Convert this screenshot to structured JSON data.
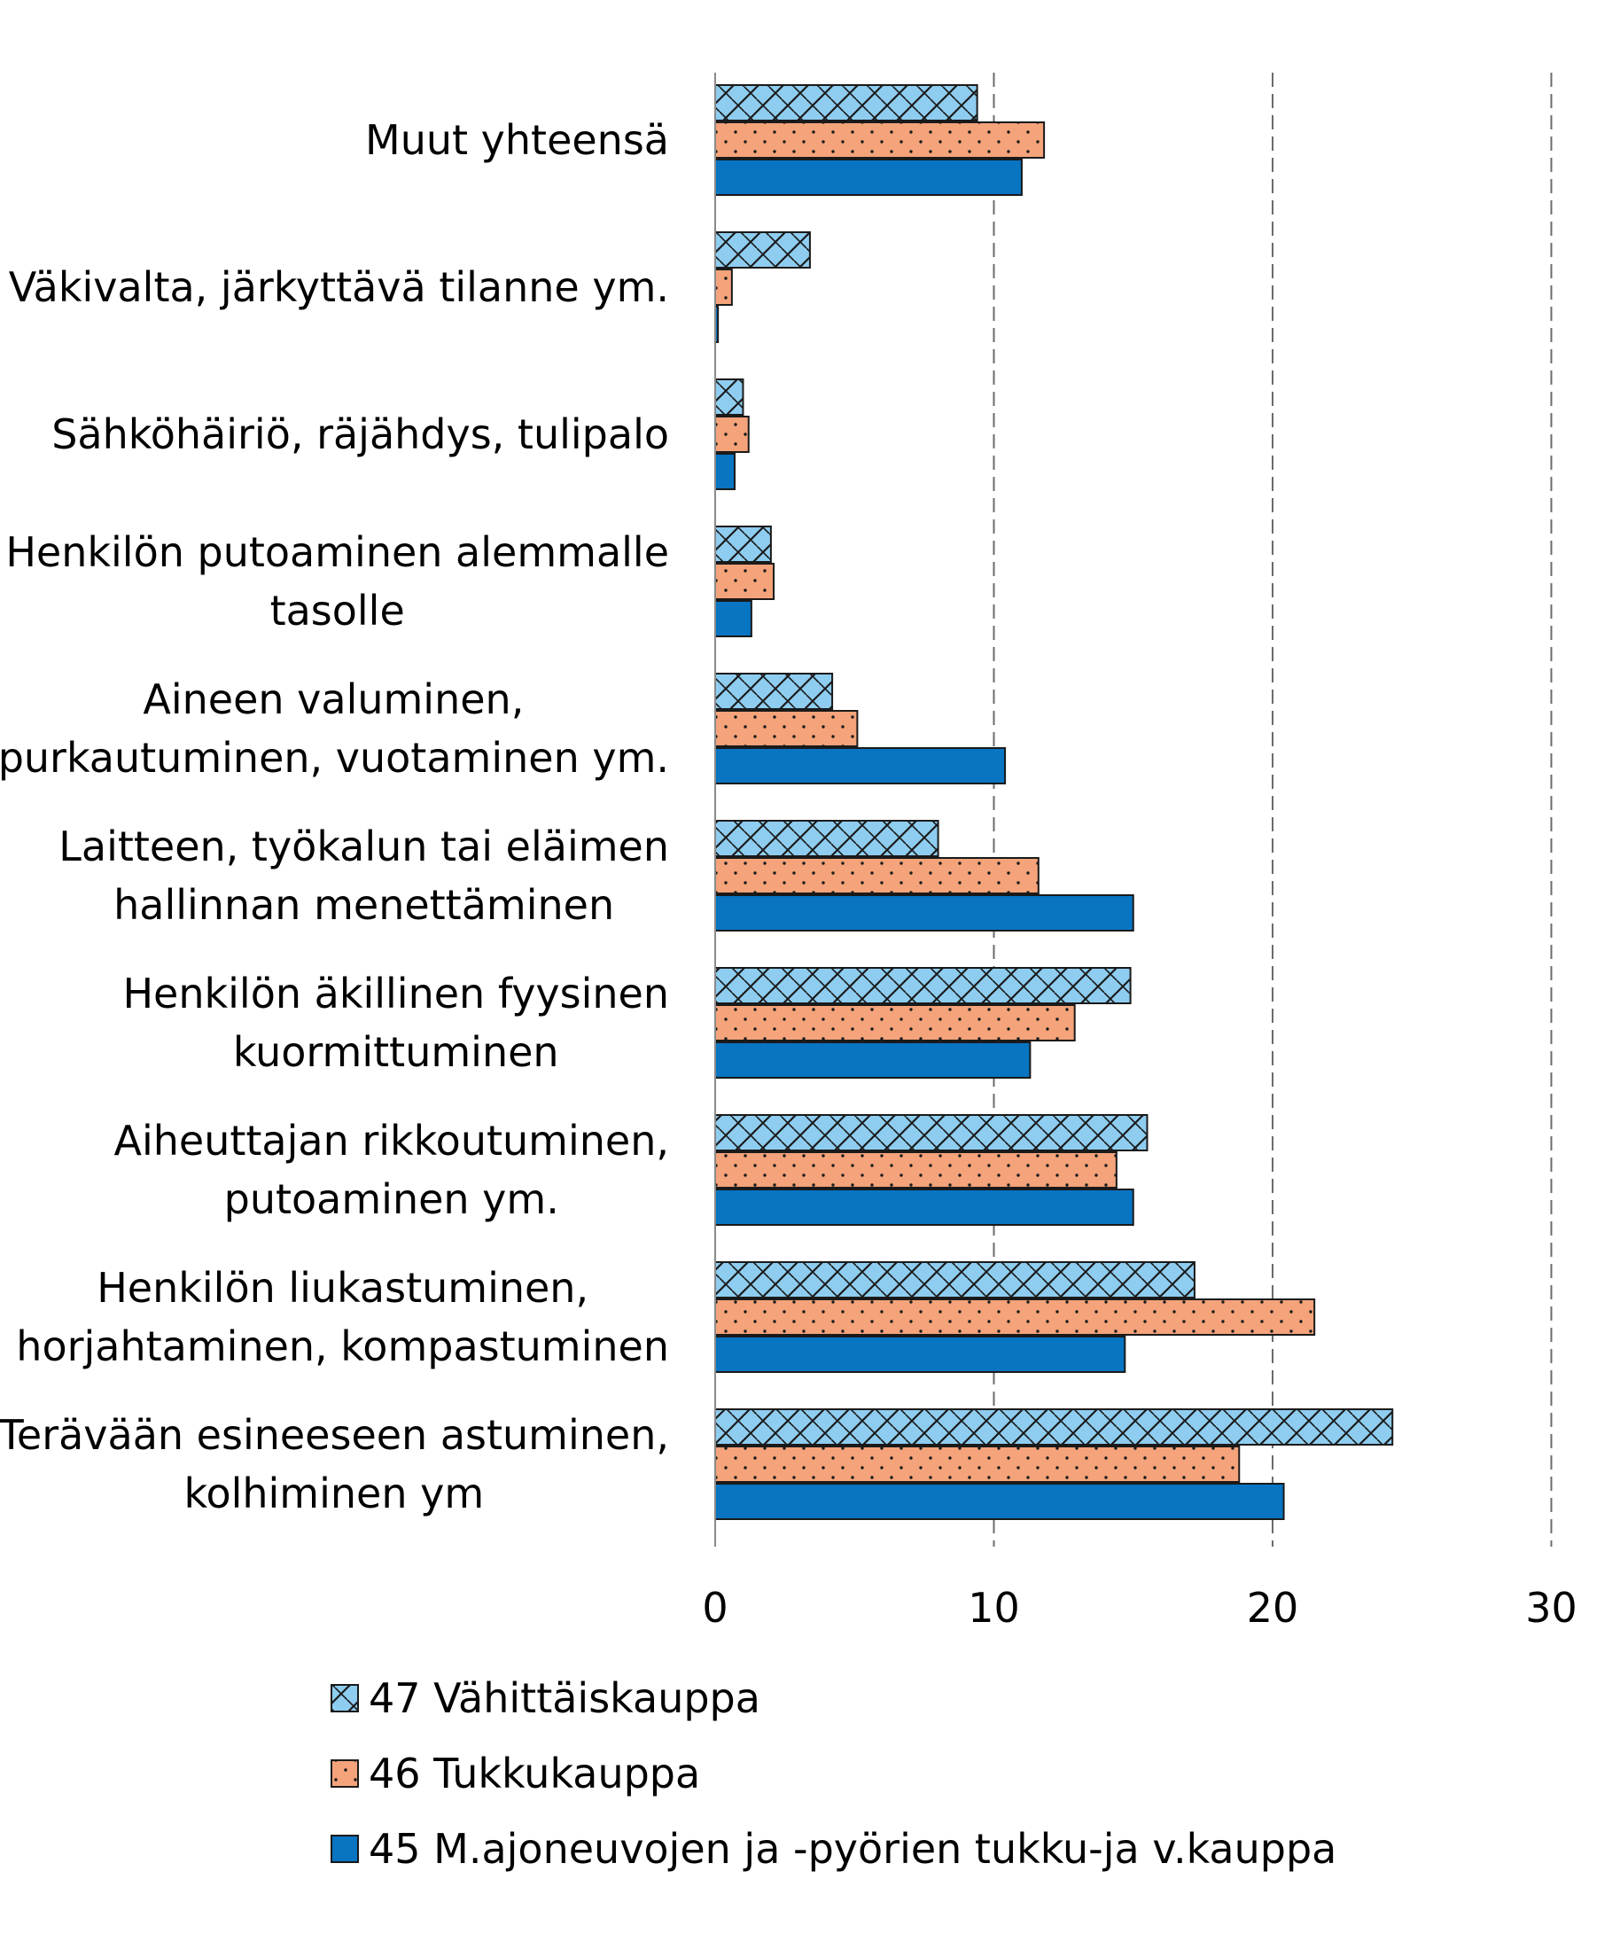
{
  "chart_data": {
    "type": "bar",
    "orientation": "horizontal",
    "categories": [
      "Muut yhteensä",
      "Väkivalta, järkyttävä tilanne ym.",
      "Sähköhäiriö, räjähdys, tulipalo",
      "Henkilön putoaminen alemmalle tasolle",
      "Aineen valuminen, purkautuminen, vuotaminen ym.",
      "Laitteen, työkalun tai eläimen hallinnan menettäminen",
      "Henkilön äkillinen fyysinen kuormittuminen",
      "Aiheuttajan rikkoutuminen, putoaminen ym.",
      "Henkilön liukastuminen, horjahtaminen, kompastuminen",
      "Terävään esineeseen astuminen, kolhiminen ym"
    ],
    "category_lines": [
      [
        "Muut yhteensä"
      ],
      [
        "Väkivalta, järkyttävä tilanne ym."
      ],
      [
        "Sähköhäiriö, räjähdys, tulipalo"
      ],
      [
        "Henkilön putoaminen alemmalle",
        "tasolle"
      ],
      [
        "Aineen valuminen,",
        "purkautuminen, vuotaminen ym."
      ],
      [
        "Laitteen, työkalun tai eläimen",
        "hallinnan menettäminen"
      ],
      [
        "Henkilön äkillinen fyysinen",
        "kuormittuminen"
      ],
      [
        "Aiheuttajan rikkoutuminen,",
        "putoaminen ym."
      ],
      [
        "Henkilön liukastuminen,",
        "horjahtaminen, kompastuminen"
      ],
      [
        "Terävään esineeseen astuminen,",
        "kolhiminen ym"
      ]
    ],
    "series": [
      {
        "name": "47 Vähittäiskauppa",
        "pattern": "crosshatch",
        "color": "#8ecdf0",
        "values": [
          9.4,
          3.4,
          1.0,
          2.0,
          4.2,
          8.0,
          14.9,
          15.5,
          17.2,
          24.3
        ]
      },
      {
        "name": "46 Tukkukauppa",
        "pattern": "dots",
        "color": "#f4a37a",
        "values": [
          11.8,
          0.6,
          1.2,
          2.1,
          5.1,
          11.6,
          12.9,
          14.4,
          21.5,
          18.8
        ]
      },
      {
        "name": "45 M.ajoneuvojen ja -pyörien tukku-ja v.kauppa",
        "pattern": "solid",
        "color": "#0874c2",
        "values": [
          11.0,
          0.1,
          0.7,
          1.3,
          10.4,
          15.0,
          11.3,
          15.0,
          14.7,
          20.4
        ]
      }
    ],
    "xlim": [
      0,
      30
    ],
    "xticks": [
      "0",
      "10",
      "20",
      "30"
    ],
    "grid": "vertical-dashed",
    "legend_position": "bottom",
    "title": "",
    "xlabel": "",
    "ylabel": ""
  }
}
